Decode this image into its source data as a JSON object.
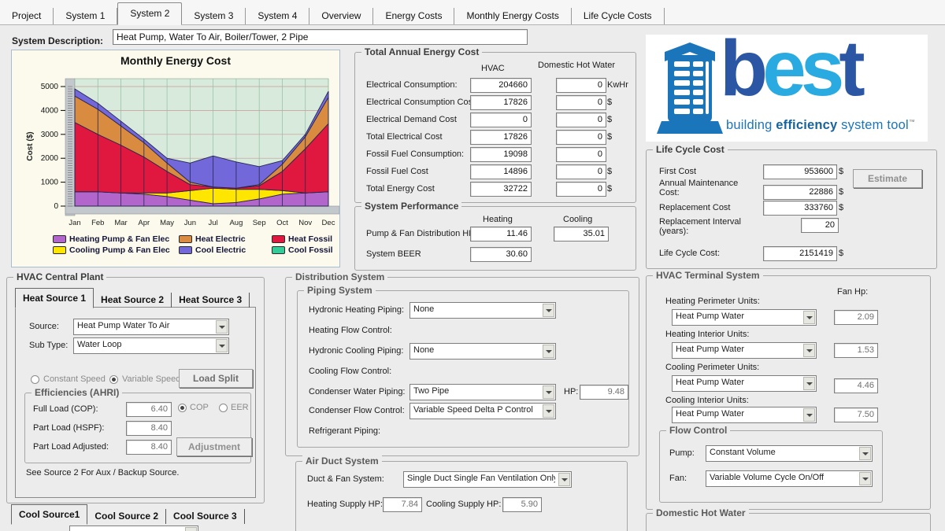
{
  "tabs": {
    "items": [
      "Project",
      "System 1",
      "System 2",
      "System 3",
      "System 4",
      "Overview",
      "Energy Costs",
      "Monthly Energy Costs",
      "Life Cycle Costs"
    ],
    "active": "System 2"
  },
  "system_description": {
    "label": "System Description:",
    "value": "Heat Pump, Water To Air, Boiler/Tower, 2 Pipe"
  },
  "chart_data": {
    "type": "area",
    "stacked": true,
    "title": "Monthly Energy Cost",
    "ylabel": "Cost ($)",
    "categories": [
      "Jan",
      "Feb",
      "Mar",
      "Apr",
      "May",
      "Jun",
      "Jul",
      "Aug",
      "Sep",
      "Oct",
      "Nov",
      "Dec"
    ],
    "ylim": [
      0,
      5000
    ],
    "yticks": [
      0,
      1000,
      2000,
      3000,
      4000,
      5000
    ],
    "grid": true,
    "legend_position": "bottom",
    "series": [
      {
        "name": "Heating Pump & Fan Elec",
        "color": "#B266CC",
        "values": [
          600,
          600,
          550,
          500,
          400,
          250,
          100,
          150,
          300,
          500,
          550,
          600
        ]
      },
      {
        "name": "Cooling Pump & Fan Elec",
        "color": "#FFE600",
        "values": [
          0,
          0,
          0,
          50,
          150,
          400,
          650,
          550,
          400,
          150,
          0,
          0
        ]
      },
      {
        "name": "Heat Fossil",
        "color": "#E01840",
        "values": [
          2900,
          2400,
          2000,
          1500,
          900,
          250,
          50,
          50,
          150,
          800,
          1850,
          2850
        ]
      },
      {
        "name": "Heat Electric",
        "color": "#D98C3F",
        "values": [
          1100,
          1050,
          800,
          600,
          350,
          100,
          0,
          0,
          50,
          300,
          500,
          1100
        ]
      },
      {
        "name": "Cool Electric",
        "color": "#7268D9",
        "values": [
          300,
          250,
          200,
          150,
          200,
          800,
          1300,
          1100,
          750,
          150,
          100,
          250
        ]
      },
      {
        "name": "Cool Fossil",
        "color": "#33CC99",
        "values": [
          0,
          0,
          0,
          0,
          0,
          0,
          0,
          0,
          0,
          0,
          0,
          0
        ]
      }
    ],
    "legend_order": [
      0,
      3,
      2,
      1,
      4,
      5
    ]
  },
  "annual": {
    "title": "Total Annual Energy Cost",
    "col1": "HVAC",
    "col2": "Domestic Hot Water",
    "rows": [
      {
        "label": "Electrical Consumption:",
        "hvac": "204660",
        "dhw": "0",
        "unit": "KwHr"
      },
      {
        "label": "Electrical Consumption Cost",
        "hvac": "17826",
        "dhw": "0",
        "unit": "$"
      },
      {
        "label": "Electrical Demand Cost",
        "hvac": "0",
        "dhw": "0",
        "unit": "$"
      },
      {
        "label": "Total Electrical Cost",
        "hvac": "17826",
        "dhw": "0",
        "unit": "$"
      },
      {
        "label": "Fossil Fuel Consumption:",
        "hvac": "19098",
        "dhw": "0",
        "unit": ""
      },
      {
        "label": "Fossil Fuel Cost",
        "hvac": "14896",
        "dhw": "0",
        "unit": "$"
      },
      {
        "label": "Total Energy Cost",
        "hvac": "32722",
        "dhw": "0",
        "unit": "$"
      }
    ]
  },
  "performance": {
    "title": "System Performance",
    "col1": "Heating",
    "col2": "Cooling",
    "row1": {
      "label": "Pump & Fan Distribution HP",
      "heating": "11.46",
      "cooling": "35.01"
    },
    "row2": {
      "label": "System BEER",
      "heating": "30.60"
    }
  },
  "logo": {
    "word_b": "b",
    "word_es": "es",
    "word_t": "t",
    "tagline_1": "building ",
    "tagline_2": "efficiency",
    "tagline_3": " system tool",
    "tm": "™",
    "dark_blue": "#2A56A4",
    "light_blue": "#29ABE2",
    "mid_blue": "#1B75BB"
  },
  "life_cycle": {
    "title": "Life Cycle Cost",
    "first_cost_label": "First Cost",
    "first_cost": "953600",
    "first_cost_unit": "$",
    "maint_label": "Annual Maintenance Cost:",
    "maint": "22886",
    "maint_unit": "$",
    "replacement_label": "Replacement Cost",
    "replacement": "333760",
    "replacement_unit": "$",
    "interval_label": "Replacement Interval (years):",
    "interval": "20",
    "lcc_label": "Life Cycle Cost:",
    "lcc": "2151419",
    "lcc_unit": "$",
    "estimate_button": "Estimate"
  },
  "central_plant": {
    "title": "HVAC Central Plant",
    "heat_tabs": [
      "Heat Source 1",
      "Heat Source 2",
      "Heat Source 3"
    ],
    "active_heat_tab": "Heat Source 1",
    "source_label": "Source:",
    "source_value": "Heat Pump Water To Air",
    "subtype_label": "Sub Type:",
    "subtype_value": "Water Loop",
    "radio_constant": "Constant Speed",
    "radio_variable": "Variable Speed",
    "load_split_button": "Load Split",
    "efficiencies": {
      "title": "Efficiencies (AHRI)",
      "full_load_label": "Full Load (COP):",
      "full_load_value": "6.40",
      "radio_cop": "COP",
      "radio_eer": "EER",
      "part_load_label": "Part Load (HSPF):",
      "part_load_value": "8.40",
      "part_adj_label": "Part Load Adjusted:",
      "part_adj_value": "8.40",
      "adjustment_button": "Adjustment"
    },
    "note": "See Source 2 For Aux / Backup Source.",
    "cool_tabs": [
      "Cool Source1",
      "Cool Source 2",
      "Cool Source 3"
    ],
    "active_cool_tab": "Cool Source1"
  },
  "distribution": {
    "title": "Distribution System",
    "piping_title": "Piping System",
    "hydronic_heating_label": "Hydronic Heating Piping:",
    "hydronic_heating_value": "None",
    "heating_flow_label": "Heating Flow Control:",
    "hydronic_cooling_label": "Hydronic Cooling Piping:",
    "hydronic_cooling_value": "None",
    "cooling_flow_label": "Cooling Flow Control:",
    "condenser_piping_label": "Condenser Water Piping:",
    "condenser_piping_value": "Two Pipe",
    "hp_label": "HP:",
    "hp_value": "9.48",
    "condenser_flow_label": "Condenser Flow Control:",
    "condenser_flow_value": "Variable Speed Delta P Control",
    "refrigerant_label": "Refrigerant Piping:"
  },
  "air_duct": {
    "title": "Air Duct System",
    "duct_fan_label": "Duct & Fan System:",
    "duct_fan_value": "Single Duct Single Fan Ventilation Only DOAS",
    "heating_hp_label": "Heating Supply HP:",
    "heating_hp_value": "7.84",
    "cooling_hp_label": "Cooling Supply HP:",
    "cooling_hp_value": "5.90"
  },
  "terminal": {
    "title": "HVAC Terminal System",
    "fan_hp_header": "Fan Hp:",
    "rows": [
      {
        "label": "Heating Perimeter Units:",
        "value": "Heat Pump Water",
        "hp": "2.09"
      },
      {
        "label": "Heating Interior Units:",
        "value": "Heat Pump Water",
        "hp": "1.53"
      },
      {
        "label": "Cooling Perimeter Units:",
        "value": "Heat Pump Water",
        "hp": "4.46"
      },
      {
        "label": "Cooling Interior Units:",
        "value": "Heat Pump Water",
        "hp": "7.50"
      }
    ],
    "flow_control": {
      "title": "Flow Control",
      "pump_label": "Pump:",
      "pump_value": "Constant Volume",
      "fan_label": "Fan:",
      "fan_value": "Variable Volume Cycle On/Off"
    }
  },
  "dhw": {
    "title": "Domestic Hot Water"
  }
}
